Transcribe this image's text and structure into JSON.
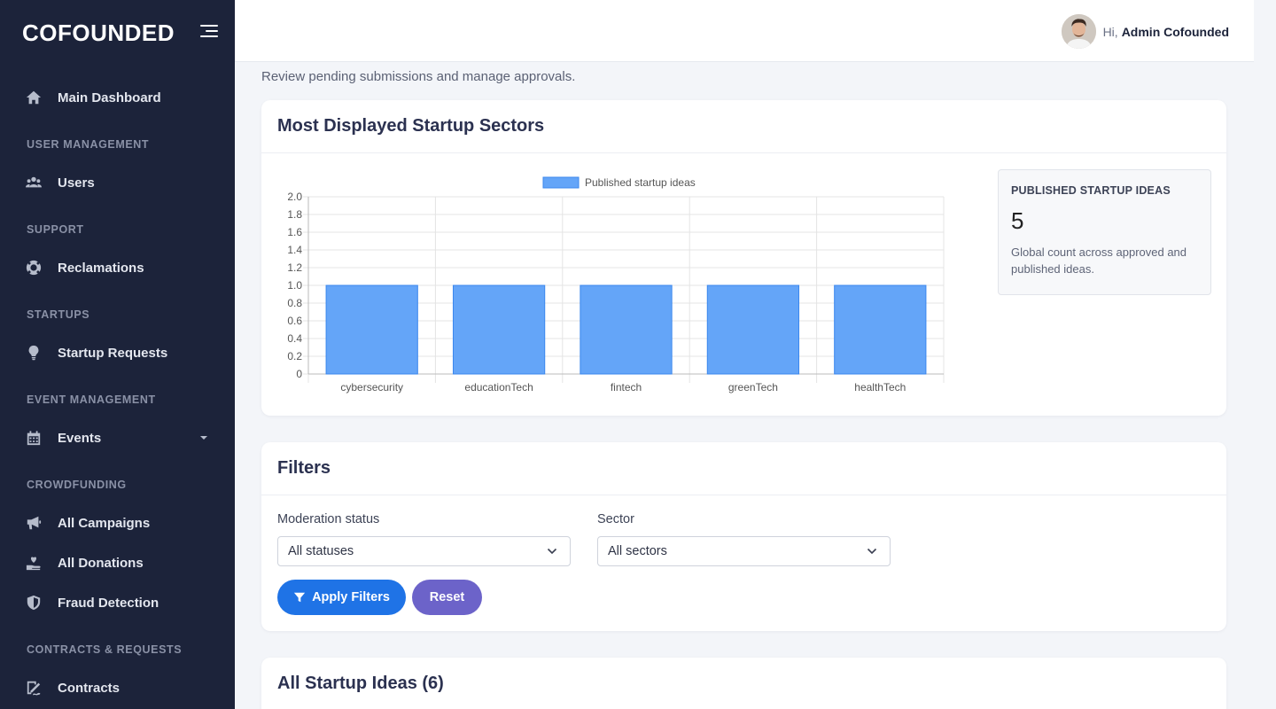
{
  "sidebar": {
    "brand": "COFOUNDED",
    "items": [
      {
        "label": "Main Dashboard",
        "icon": "home-icon"
      },
      {
        "section": "USER MANAGEMENT"
      },
      {
        "label": "Users",
        "icon": "users-icon"
      },
      {
        "section": "SUPPORT"
      },
      {
        "label": "Reclamations",
        "icon": "lifebuoy-icon"
      },
      {
        "section": "STARTUPS"
      },
      {
        "label": "Startup Requests",
        "icon": "lightbulb-icon"
      },
      {
        "section": "EVENT MANAGEMENT"
      },
      {
        "label": "Events",
        "icon": "calendar-icon"
      },
      {
        "section": "CROWDFUNDING"
      },
      {
        "label": "All Campaigns",
        "icon": "megaphone-icon"
      },
      {
        "label": "All Donations",
        "icon": "donation-icon"
      },
      {
        "label": "Fraud Detection",
        "icon": "shield-icon"
      },
      {
        "section": "CONTRACTS & REQUESTS"
      },
      {
        "label": "Contracts",
        "icon": "contract-icon"
      }
    ]
  },
  "topbar": {
    "greeting": "Hi,",
    "username": "Admin Cofounded"
  },
  "page": {
    "subtitle": "Review pending submissions and manage approvals."
  },
  "sectors_card": {
    "title": "Most Displayed Startup Sectors",
    "stat_label": "PUBLISHED STARTUP IDEAS",
    "stat_value": "5",
    "stat_desc": "Global count across approved and published ideas."
  },
  "filters_card": {
    "title": "Filters",
    "status_label": "Moderation status",
    "status_value": "All statuses",
    "sector_label": "Sector",
    "sector_value": "All sectors",
    "apply_label": "Apply Filters",
    "reset_label": "Reset"
  },
  "ideas_card": {
    "title": "All Startup Ideas (6)"
  },
  "chart_data": {
    "type": "bar",
    "categories": [
      "cybersecurity",
      "educationTech",
      "fintech",
      "greenTech",
      "healthTech"
    ],
    "series": [
      {
        "name": "Published startup ideas",
        "values": [
          1,
          1,
          1,
          1,
          1
        ]
      }
    ],
    "y_ticks": [
      "0",
      "0.2",
      "0.4",
      "0.6",
      "0.8",
      "1.0",
      "1.2",
      "1.4",
      "1.6",
      "1.8",
      "2.0"
    ],
    "ylim": [
      0,
      2
    ],
    "grid": true,
    "legend": "top-center",
    "colors": {
      "bar_fill": "#64a5f8",
      "bar_stroke": "#3b87ee"
    }
  }
}
